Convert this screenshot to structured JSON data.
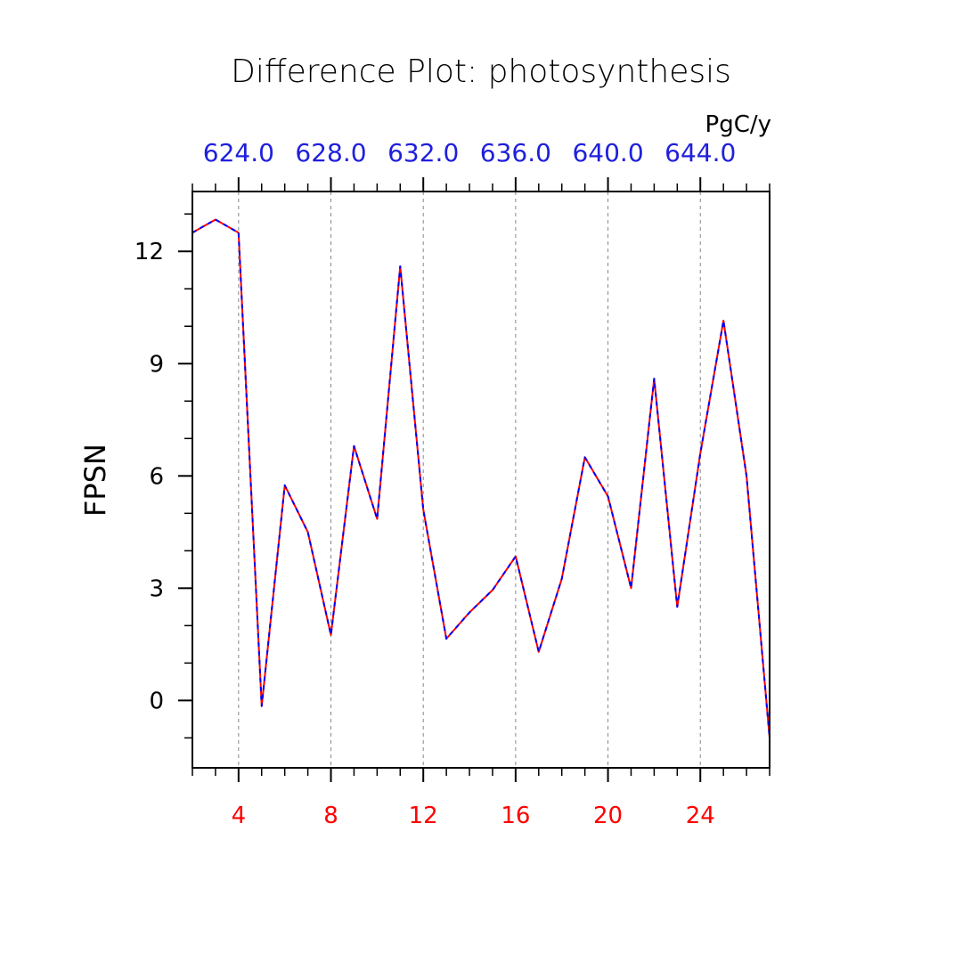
{
  "chart_data": {
    "type": "line",
    "title": "Difference Plot: photosynthesis",
    "xlabel": "",
    "ylabel": "FPSN",
    "units": "PgC/y",
    "xlim": [
      2,
      27
    ],
    "ylim": [
      -1.8,
      13.6
    ],
    "x_ticks": [
      4,
      8,
      12,
      16,
      20,
      24
    ],
    "x_tick_labels": [
      "4",
      "8",
      "12",
      "16",
      "20",
      "24"
    ],
    "y_ticks": [
      0,
      3,
      6,
      9,
      12
    ],
    "y_tick_labels": [
      "0",
      "3",
      "6",
      "9",
      "12"
    ],
    "top_axis_tick_labels": [
      "624.0",
      "628.0",
      "632.0",
      "636.0",
      "640.0",
      "644.0"
    ],
    "grid": "vertical-dashed",
    "x": [
      2,
      3,
      4,
      5,
      6,
      7,
      8,
      9,
      10,
      11,
      12,
      13,
      14,
      15,
      16,
      17,
      18,
      19,
      20,
      21,
      22,
      23,
      24,
      25,
      26,
      27
    ],
    "series": [
      {
        "color": "#ff0000",
        "values": [
          12.5,
          12.85,
          12.5,
          -0.15,
          5.75,
          4.5,
          1.75,
          6.8,
          4.85,
          11.6,
          5.1,
          1.65,
          2.35,
          2.95,
          3.85,
          1.3,
          3.25,
          6.5,
          5.45,
          3.0,
          8.6,
          2.5,
          6.6,
          10.15,
          6.0,
          -1.0
        ]
      },
      {
        "color": "#0000ff",
        "values": [
          12.5,
          12.85,
          12.5,
          -0.15,
          5.75,
          4.5,
          1.75,
          6.8,
          4.85,
          11.6,
          5.1,
          1.65,
          2.35,
          2.95,
          3.85,
          1.3,
          3.25,
          6.5,
          5.45,
          3.0,
          8.6,
          2.5,
          6.6,
          10.15,
          6.0,
          -1.0
        ]
      }
    ]
  }
}
